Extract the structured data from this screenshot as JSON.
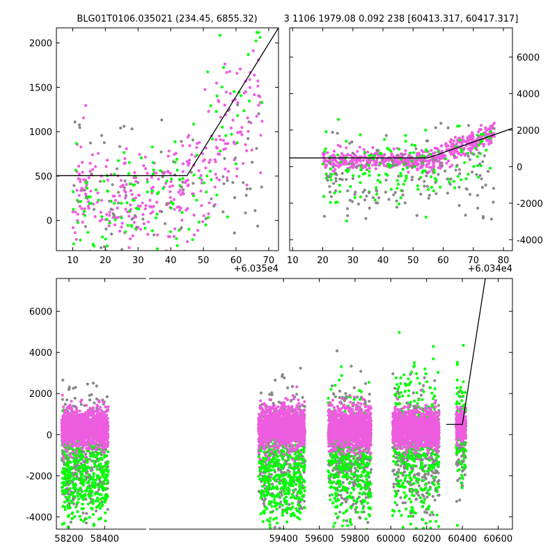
{
  "titles": {
    "left": "BLG01T0106.035021 (234.45, 6855.32)",
    "right": "3 1106 1979.08 0.092 238 [60413.317, 60417.317]"
  },
  "colors": {
    "magenta": "#ee5ce0",
    "green": "#00ff00",
    "gray": "#888888",
    "model": "#000000"
  },
  "chart_data": [
    {
      "id": "top-left",
      "type": "scatter",
      "x_offset_label": "+6.035e4",
      "xlim": [
        5,
        73
      ],
      "ylim": [
        -340,
        2170
      ],
      "xticks": [
        10,
        20,
        30,
        40,
        50,
        60,
        70
      ],
      "yticks": [
        0,
        500,
        1000,
        1500,
        2000
      ],
      "y_axis_side": "left",
      "model": [
        [
          5,
          505
        ],
        [
          45,
          505
        ],
        [
          73,
          2170
        ]
      ],
      "clouds": [
        {
          "color": "magenta",
          "n": 330,
          "seed": 11,
          "xr": [
            10,
            68
          ],
          "segments": [
            [
              10,
              45,
              300,
              280
            ],
            [
              45,
              68,
              700,
              420
            ]
          ]
        },
        {
          "color": "green",
          "n": 150,
          "seed": 12,
          "xr": [
            10,
            68
          ],
          "segments": [
            [
              10,
              45,
              150,
              380
            ],
            [
              45,
              68,
              900,
              550
            ]
          ]
        },
        {
          "color": "gray",
          "n": 90,
          "seed": 13,
          "xr": [
            10,
            68
          ],
          "segments": [
            [
              10,
              68,
              300,
              450
            ]
          ]
        }
      ]
    },
    {
      "id": "top-right",
      "type": "scatter",
      "x_offset_label": "+6.034e4",
      "xlim": [
        9,
        83
      ],
      "ylim": [
        -4600,
        7600
      ],
      "xticks": [
        10,
        20,
        30,
        40,
        50,
        60,
        70,
        80
      ],
      "yticks": [
        -4000,
        -2000,
        0,
        2000,
        4000,
        6000
      ],
      "y_axis_side": "right",
      "model": [
        [
          9,
          480
        ],
        [
          55,
          480
        ],
        [
          83,
          2100
        ]
      ],
      "clouds": [
        {
          "color": "magenta",
          "n": 600,
          "seed": 21,
          "xr": [
            20,
            77
          ],
          "segments": [
            [
              20,
              55,
              350,
              250
            ],
            [
              55,
              77,
              950,
              320
            ]
          ]
        },
        {
          "color": "green",
          "n": 160,
          "seed": 22,
          "xr": [
            20,
            77
          ],
          "segments": [
            [
              20,
              60,
              -300,
              900
            ],
            [
              60,
              77,
              700,
              900
            ]
          ]
        },
        {
          "color": "gray",
          "n": 150,
          "seed": 23,
          "xr": [
            20,
            77
          ],
          "segments": [
            [
              20,
              77,
              -400,
              1100
            ]
          ]
        }
      ]
    },
    {
      "id": "bottom",
      "type": "scatter",
      "xlim": [
        58130,
        60680
      ],
      "ylim": [
        -4600,
        7600
      ],
      "xticks": [
        58200,
        58400,
        59400,
        59600,
        59800,
        60000,
        60200,
        60400,
        60600
      ],
      "tick_labels": [
        "58200",
        "58400",
        "59400",
        "59600",
        "59800",
        "60000",
        "60200",
        "60400",
        "60600"
      ],
      "yticks": [
        -4000,
        -2000,
        0,
        2000,
        4000,
        6000
      ],
      "y_axis_side": "left",
      "axis_break": true,
      "model": [
        [
          60310,
          500
        ],
        [
          60400,
          500
        ],
        [
          60530,
          7700
        ]
      ],
      "clouds": [
        {
          "color": "gray",
          "n": 420,
          "seed": 31,
          "xr": [
            58160,
            58420
          ],
          "segments": [
            [
              58160,
              58420,
              -900,
              1500
            ]
          ]
        },
        {
          "color": "green",
          "n": 420,
          "seed": 32,
          "xr": [
            58160,
            58420
          ],
          "segments": [
            [
              58160,
              58420,
              -1900,
              1300
            ]
          ]
        },
        {
          "color": "magenta",
          "n": 1200,
          "seed": 33,
          "xr": [
            58160,
            58420
          ],
          "segments": [
            [
              58160,
              58420,
              300,
              450
            ]
          ]
        },
        {
          "color": "gray",
          "n": 420,
          "seed": 41,
          "xr": [
            59260,
            59520
          ],
          "segments": [
            [
              59260,
              59520,
              -1000,
              1500
            ]
          ]
        },
        {
          "color": "green",
          "n": 420,
          "seed": 42,
          "xr": [
            59260,
            59520
          ],
          "segments": [
            [
              59260,
              59520,
              -2000,
              1300
            ]
          ]
        },
        {
          "color": "magenta",
          "n": 1200,
          "seed": 43,
          "xr": [
            59260,
            59520
          ],
          "segments": [
            [
              59260,
              59520,
              400,
              500
            ]
          ]
        },
        {
          "color": "gray",
          "n": 420,
          "seed": 51,
          "xr": [
            59650,
            59890
          ],
          "segments": [
            [
              59650,
              59890,
              -800,
              1400
            ]
          ]
        },
        {
          "color": "green",
          "n": 380,
          "seed": 52,
          "xr": [
            59650,
            59890
          ],
          "segments": [
            [
              59650,
              59890,
              -1400,
              1500
            ]
          ]
        },
        {
          "color": "magenta",
          "n": 1100,
          "seed": 53,
          "xr": [
            59650,
            59890
          ],
          "segments": [
            [
              59650,
              59890,
              350,
              500
            ]
          ]
        },
        {
          "color": "gray",
          "n": 420,
          "seed": 61,
          "xr": [
            60010,
            60270
          ],
          "segments": [
            [
              60010,
              60270,
              -700,
              1400
            ]
          ]
        },
        {
          "color": "green",
          "n": 400,
          "seed": 62,
          "xr": [
            60010,
            60270
          ],
          "segments": [
            [
              60010,
              60270,
              -800,
              1900
            ]
          ]
        },
        {
          "color": "magenta",
          "n": 1200,
          "seed": 63,
          "xr": [
            60010,
            60270
          ],
          "segments": [
            [
              60010,
              60270,
              300,
              450
            ]
          ]
        },
        {
          "color": "gray",
          "n": 110,
          "seed": 71,
          "xr": [
            60365,
            60420
          ],
          "segments": [
            [
              60365,
              60420,
              -400,
              1100
            ]
          ]
        },
        {
          "color": "green",
          "n": 90,
          "seed": 72,
          "xr": [
            60365,
            60420
          ],
          "segments": [
            [
              60365,
              60420,
              200,
              1400
            ]
          ]
        },
        {
          "color": "magenta",
          "n": 280,
          "seed": 73,
          "xr": [
            60365,
            60420
          ],
          "segments": [
            [
              60365,
              60420,
              500,
              350
            ]
          ]
        }
      ]
    }
  ]
}
